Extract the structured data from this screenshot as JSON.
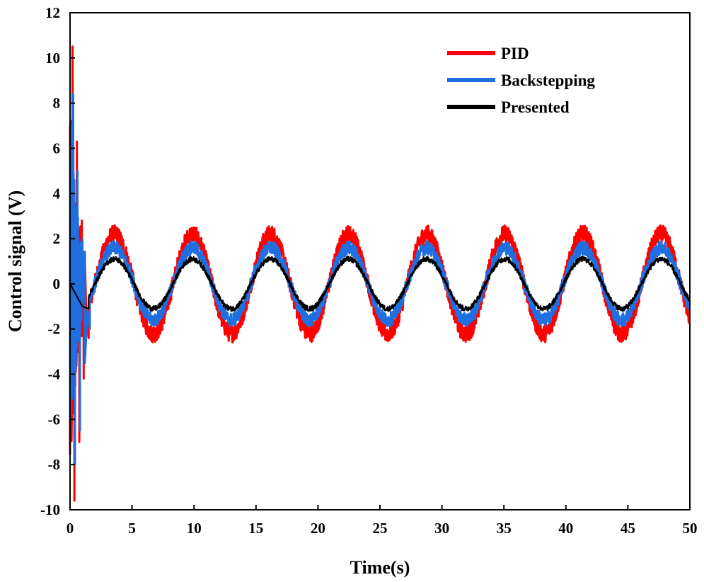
{
  "chart_data": {
    "type": "line",
    "xlabel": "Time(s)",
    "ylabel": "Control signal (V)",
    "xlim": [
      0,
      50
    ],
    "ylim": [
      -10,
      12
    ],
    "xticks": [
      0,
      5,
      10,
      15,
      20,
      25,
      30,
      35,
      40,
      45,
      50
    ],
    "yticks": [
      -10,
      -8,
      -6,
      -4,
      -2,
      0,
      2,
      4,
      6,
      8,
      10,
      12
    ],
    "grid": false,
    "legend_position": "top-right",
    "period_s": 6.3,
    "series": [
      {
        "name": "PID",
        "color": "#ff0000",
        "steady_amplitude": 2.2,
        "noise_band": 0.4,
        "transient": [
          [
            0.0,
            7.0
          ],
          [
            0.2,
            10.5
          ],
          [
            0.35,
            -9.6
          ],
          [
            0.55,
            6.3
          ],
          [
            0.75,
            -7.0
          ],
          [
            0.95,
            2.8
          ],
          [
            1.1,
            -4.2
          ],
          [
            1.3,
            -1.2
          ],
          [
            1.5,
            -2.4
          ]
        ]
      },
      {
        "name": "Backstepping",
        "color": "#1f6fe0",
        "steady_amplitude": 1.6,
        "noise_band": 0.3,
        "transient": [
          [
            0.0,
            5.5
          ],
          [
            0.25,
            8.4
          ],
          [
            0.4,
            -8.0
          ],
          [
            0.6,
            5.0
          ],
          [
            0.8,
            -6.5
          ],
          [
            1.0,
            2.0
          ],
          [
            1.2,
            -3.5
          ],
          [
            1.4,
            -1.2
          ],
          [
            1.6,
            -2.0
          ]
        ]
      },
      {
        "name": "Presented",
        "color": "#000000",
        "steady_amplitude": 1.1,
        "noise_band": 0.12,
        "transient": [
          [
            0.0,
            0.0
          ],
          [
            0.5,
            -0.5
          ],
          [
            1.0,
            -1.0
          ],
          [
            1.5,
            -1.1
          ]
        ]
      }
    ]
  }
}
